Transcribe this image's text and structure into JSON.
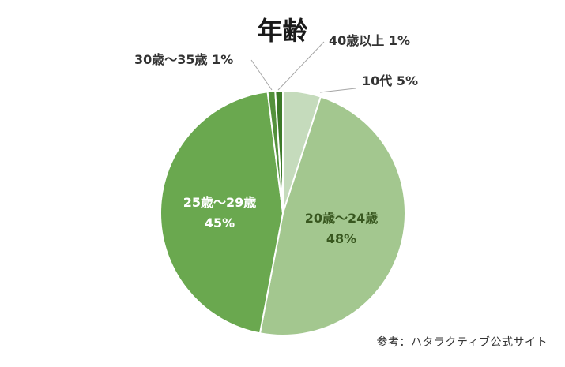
{
  "chart_data": {
    "type": "pie",
    "title": "年齢",
    "series": [
      {
        "name": "10代",
        "value": 5,
        "color": "#c5dbbc"
      },
      {
        "name": "20歳～24歳",
        "value": 48,
        "color": "#a3c78f"
      },
      {
        "name": "25歳～29歳",
        "value": 45,
        "color": "#6aa84f"
      },
      {
        "name": "30歳～35歳",
        "value": 1,
        "color": "#54913c"
      },
      {
        "name": "40歳以上",
        "value": 1,
        "color": "#3d7a28"
      }
    ],
    "labels": [
      {
        "line1": "10代 5%",
        "line2": ""
      },
      {
        "line1": "20歳～24歳",
        "line2": "48%"
      },
      {
        "line1": "25歳～29歳",
        "line2": "45%"
      },
      {
        "line1": "30歳～35歳 1%",
        "line2": ""
      },
      {
        "line1": "40歳以上 1%",
        "line2": ""
      }
    ],
    "legend": "none"
  },
  "source_note": "参考：ハタラクティブ公式サイト"
}
